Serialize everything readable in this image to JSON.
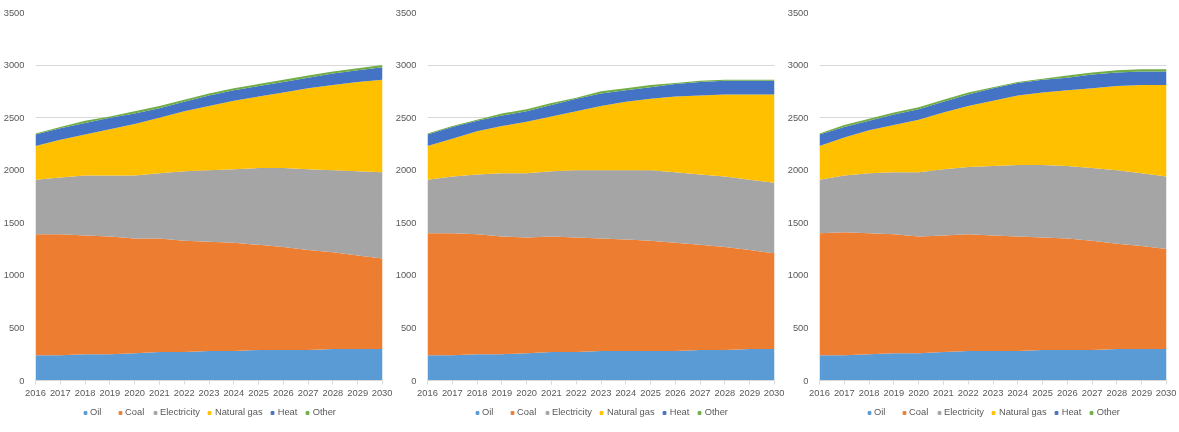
{
  "chart_data": [
    {
      "type": "area",
      "stacked": true,
      "grid": "y",
      "legend": "bottom",
      "x": [
        2016,
        2017,
        2018,
        2019,
        2020,
        2021,
        2022,
        2023,
        2024,
        2025,
        2026,
        2027,
        2028,
        2029,
        2030
      ],
      "xlim": [
        2016,
        2030
      ],
      "xticks": [
        2016,
        2017,
        2018,
        2019,
        2020,
        2021,
        2022,
        2023,
        2024,
        2025,
        2026,
        2027,
        2028,
        2029,
        2030
      ],
      "ylim": [
        0,
        3500
      ],
      "yticks": [
        0,
        500,
        1000,
        1500,
        2000,
        2500,
        3000,
        3500
      ],
      "series": [
        {
          "name": "Oil",
          "color": "#5b9bd5",
          "values": [
            240,
            240,
            250,
            250,
            260,
            270,
            270,
            280,
            280,
            290,
            290,
            290,
            300,
            300,
            300
          ]
        },
        {
          "name": "Coal",
          "color": "#ed7d31",
          "values": [
            1150,
            1150,
            1130,
            1120,
            1090,
            1080,
            1060,
            1040,
            1030,
            1000,
            980,
            950,
            920,
            890,
            860
          ]
        },
        {
          "name": "Electricity",
          "color": "#a5a5a5",
          "values": [
            520,
            540,
            570,
            580,
            600,
            620,
            660,
            680,
            700,
            730,
            750,
            770,
            780,
            800,
            820
          ]
        },
        {
          "name": "Natural gas",
          "color": "#ffc000",
          "values": [
            320,
            360,
            390,
            440,
            490,
            530,
            570,
            610,
            650,
            680,
            720,
            770,
            810,
            850,
            880
          ]
        },
        {
          "name": "Heat",
          "color": "#4472c4",
          "values": [
            110,
            110,
            110,
            110,
            100,
            90,
            90,
            100,
            100,
            100,
            100,
            100,
            110,
            110,
            120
          ]
        },
        {
          "name": "Other",
          "color": "#70ad47",
          "values": [
            10,
            10,
            20,
            10,
            20,
            20,
            20,
            20,
            20,
            20,
            20,
            20,
            20,
            20,
            20
          ]
        }
      ]
    },
    {
      "type": "area",
      "stacked": true,
      "grid": "y",
      "legend": "bottom",
      "x": [
        2016,
        2017,
        2018,
        2019,
        2020,
        2021,
        2022,
        2023,
        2024,
        2025,
        2026,
        2027,
        2028,
        2029,
        2030
      ],
      "xlim": [
        2016,
        2030
      ],
      "xticks": [
        2016,
        2017,
        2018,
        2019,
        2020,
        2021,
        2022,
        2023,
        2024,
        2025,
        2026,
        2027,
        2028,
        2029,
        2030
      ],
      "ylim": [
        0,
        3500
      ],
      "yticks": [
        0,
        500,
        1000,
        1500,
        2000,
        2500,
        3000,
        3500
      ],
      "series": [
        {
          "name": "Oil",
          "color": "#5b9bd5",
          "values": [
            240,
            240,
            250,
            250,
            260,
            270,
            270,
            280,
            280,
            280,
            280,
            290,
            290,
            300,
            300
          ]
        },
        {
          "name": "Coal",
          "color": "#ed7d31",
          "values": [
            1160,
            1160,
            1140,
            1120,
            1100,
            1100,
            1090,
            1070,
            1060,
            1050,
            1030,
            1000,
            980,
            940,
            910
          ]
        },
        {
          "name": "Electricity",
          "color": "#a5a5a5",
          "values": [
            510,
            540,
            570,
            600,
            610,
            620,
            640,
            650,
            660,
            670,
            670,
            670,
            670,
            670,
            670
          ]
        },
        {
          "name": "Natural gas",
          "color": "#ffc000",
          "values": [
            320,
            360,
            410,
            450,
            490,
            520,
            560,
            610,
            650,
            680,
            720,
            750,
            780,
            810,
            840
          ]
        },
        {
          "name": "Heat",
          "color": "#4472c4",
          "values": [
            110,
            110,
            100,
            100,
            100,
            110,
            120,
            120,
            110,
            110,
            120,
            130,
            130,
            130,
            130
          ]
        },
        {
          "name": "Other",
          "color": "#70ad47",
          "values": [
            10,
            10,
            10,
            20,
            20,
            20,
            10,
            20,
            20,
            20,
            10,
            10,
            10,
            10,
            10
          ]
        }
      ]
    },
    {
      "type": "area",
      "stacked": true,
      "grid": "y",
      "legend": "bottom",
      "x": [
        2016,
        2017,
        2018,
        2019,
        2020,
        2021,
        2022,
        2023,
        2024,
        2025,
        2026,
        2027,
        2028,
        2029,
        2030
      ],
      "xlim": [
        2016,
        2030
      ],
      "xticks": [
        2016,
        2017,
        2018,
        2019,
        2020,
        2021,
        2022,
        2023,
        2024,
        2025,
        2026,
        2027,
        2028,
        2029,
        2030
      ],
      "ylim": [
        0,
        3500
      ],
      "yticks": [
        0,
        500,
        1000,
        1500,
        2000,
        2500,
        3000,
        3500
      ],
      "series": [
        {
          "name": "Oil",
          "color": "#5b9bd5",
          "values": [
            240,
            240,
            250,
            260,
            260,
            270,
            280,
            280,
            280,
            290,
            290,
            290,
            300,
            300,
            300
          ]
        },
        {
          "name": "Coal",
          "color": "#ed7d31",
          "values": [
            1160,
            1170,
            1150,
            1130,
            1110,
            1110,
            1110,
            1100,
            1090,
            1070,
            1060,
            1040,
            1000,
            980,
            950
          ]
        },
        {
          "name": "Electricity",
          "color": "#a5a5a5",
          "values": [
            510,
            540,
            570,
            590,
            610,
            630,
            640,
            660,
            680,
            690,
            690,
            690,
            700,
            690,
            690
          ]
        },
        {
          "name": "Natural gas",
          "color": "#ffc000",
          "values": [
            320,
            360,
            410,
            450,
            500,
            540,
            580,
            620,
            660,
            690,
            720,
            760,
            800,
            840,
            870
          ]
        },
        {
          "name": "Heat",
          "color": "#4472c4",
          "values": [
            110,
            100,
            90,
            100,
            100,
            100,
            110,
            120,
            120,
            120,
            120,
            130,
            130,
            130,
            130
          ]
        },
        {
          "name": "Other",
          "color": "#70ad47",
          "values": [
            10,
            20,
            20,
            20,
            20,
            20,
            20,
            10,
            10,
            10,
            20,
            20,
            20,
            20,
            20
          ]
        }
      ]
    }
  ]
}
